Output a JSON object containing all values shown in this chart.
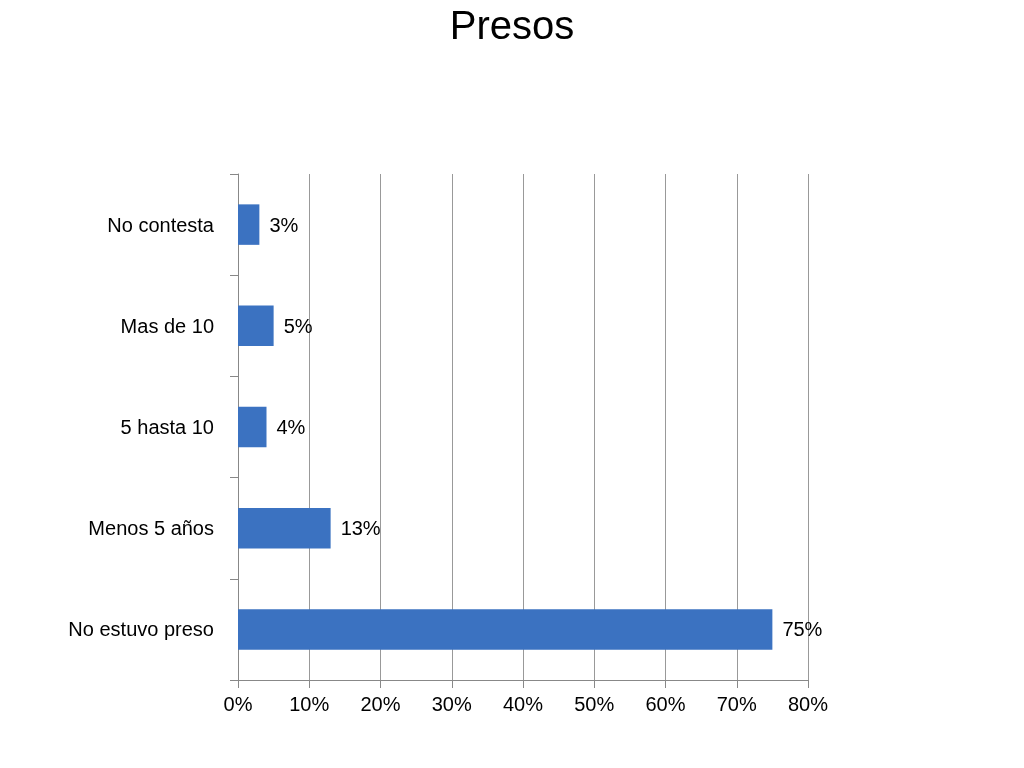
{
  "chart_data": {
    "type": "bar",
    "title": "Presos",
    "orientation": "horizontal",
    "categories": [
      "No contesta",
      "Mas de 10",
      "5 hasta 10",
      "Menos 5 años",
      "No estuvo preso"
    ],
    "values": [
      3,
      5,
      4,
      13,
      75
    ],
    "value_labels": [
      "3%",
      "5%",
      "4%",
      "13%",
      "75%"
    ],
    "color": "#3b72c1",
    "xlim": [
      0,
      80
    ],
    "xticks": [
      {
        "value": 0,
        "label": "0%"
      },
      {
        "value": 10,
        "label": "10%"
      },
      {
        "value": 20,
        "label": "20%"
      },
      {
        "value": 30,
        "label": "30%"
      },
      {
        "value": 40,
        "label": "40%"
      },
      {
        "value": 50,
        "label": "50%"
      },
      {
        "value": 60,
        "label": "60%"
      },
      {
        "value": 70,
        "label": "70%"
      },
      {
        "value": 80,
        "label": "80%"
      }
    ],
    "grid": "x"
  }
}
